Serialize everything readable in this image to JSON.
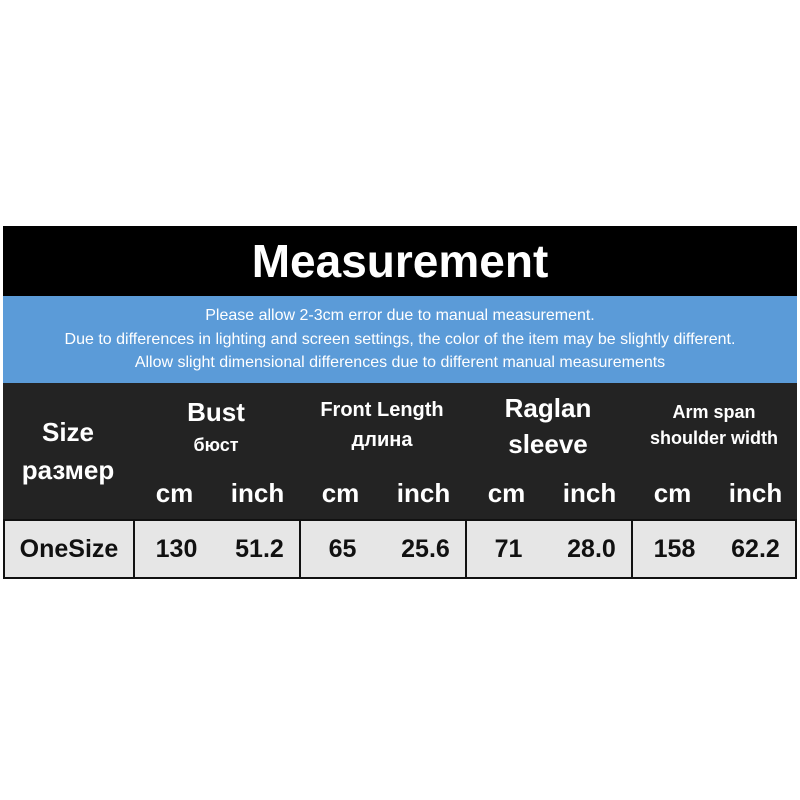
{
  "title": "Measurement",
  "notes": [
    "Please allow 2-3cm error due to manual measurement.",
    "Due to differences in lighting and screen settings, the color of the item may be slightly different.",
    "Allow slight dimensional differences due to different manual measurements"
  ],
  "header": {
    "size": {
      "en": "Size",
      "ru": "размер"
    },
    "columns": [
      {
        "line1": "Bust",
        "line2": "бюст"
      },
      {
        "line1": "Front Length",
        "line2": "длина"
      },
      {
        "line1": "Raglan",
        "line2": "sleeve"
      },
      {
        "line1": "Arm span",
        "line2": "shoulder width"
      }
    ],
    "units": [
      "cm",
      "inch",
      "cm",
      "inch",
      "cm",
      "inch",
      "cm",
      "inch"
    ]
  },
  "rows": [
    {
      "size": "OneSize",
      "values": [
        "130",
        "51.2",
        "65",
        "25.6",
        "71",
        "28.0",
        "158",
        "62.2"
      ]
    }
  ],
  "colors": {
    "title_bg": "#000000",
    "notes_bg": "#5b9bd8",
    "header_bg": "#232323",
    "row_bg": "#e6e6e6"
  }
}
